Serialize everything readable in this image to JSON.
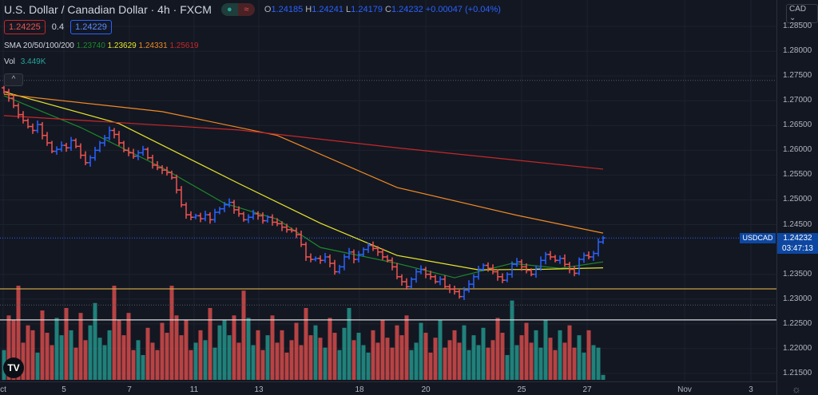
{
  "header": {
    "title": "U.S. Dollar / Canadian Dollar · 4h · FXCM",
    "ohlc": {
      "o_label": "O",
      "o": "1.24185",
      "h_label": "H",
      "h": "1.24241",
      "l_label": "L",
      "l": "1.24179",
      "c_label": "C",
      "c": "1.24232",
      "change": "+0.00047 (+0.04%)"
    },
    "bid": "1.24225",
    "spread": "0.4",
    "ask": "1.24229",
    "sma_label": "SMA 20/50/100/200",
    "sma20": "1.23740",
    "sma50": "1.23629",
    "sma100": "1.24331",
    "sma200": "1.25619",
    "vol_label": "Vol",
    "vol": "3.449K",
    "collapse": "^"
  },
  "price_axis": {
    "currency": "CAD ⌄",
    "labels": [
      "1.28500",
      "1.28000",
      "1.27500",
      "1.27000",
      "1.26500",
      "1.26000",
      "1.25500",
      "1.25000",
      "1.24500",
      "1.23500",
      "1.23000",
      "1.22500",
      "1.22000",
      "1.21500"
    ],
    "symbol": "USDCAD",
    "last_price": "1.24232",
    "countdown": "03:47:13"
  },
  "time_axis": {
    "labels": [
      "ct",
      "5",
      "7",
      "11",
      "13",
      "18",
      "20",
      "25",
      "27",
      "Nov",
      "3"
    ]
  },
  "logo": "TV",
  "colors": {
    "up": "#2962ff",
    "down": "#ef5350",
    "vol_up": "#26a69a",
    "vol_down": "#ef5350",
    "sma20": "#1b8a2a",
    "sma50": "#e6e62a",
    "sma100": "#f08a24",
    "sma200": "#c62828",
    "level": "#c9a044"
  },
  "chart_data": {
    "type": "ohlc-bar",
    "ylim": [
      1.213,
      1.2875
    ],
    "closes": [
      1.2718,
      1.2705,
      1.269,
      1.2672,
      1.266,
      1.2648,
      1.264,
      1.2652,
      1.263,
      1.2615,
      1.2598,
      1.2602,
      1.261,
      1.2605,
      1.262,
      1.2608,
      1.259,
      1.2575,
      1.2585,
      1.26,
      1.2615,
      1.2625,
      1.264,
      1.2632,
      1.2615,
      1.26,
      1.2595,
      1.2588,
      1.2595,
      1.2602,
      1.2585,
      1.257,
      1.2565,
      1.256,
      1.2555,
      1.2545,
      1.252,
      1.249,
      1.247,
      1.2465,
      1.2468,
      1.2462,
      1.247,
      1.246,
      1.2475,
      1.2482,
      1.249,
      1.2495,
      1.248,
      1.2472,
      1.246,
      1.2465,
      1.2472,
      1.2468,
      1.2458,
      1.2465,
      1.2455,
      1.2452,
      1.2445,
      1.244,
      1.2438,
      1.243,
      1.241,
      1.2385,
      1.238,
      1.2382,
      1.2378,
      1.2385,
      1.2372,
      1.2355,
      1.2365,
      1.2385,
      1.2395,
      1.238,
      1.239,
      1.24,
      1.2408,
      1.2402,
      1.2395,
      1.2385,
      1.2378,
      1.2365,
      1.2345,
      1.2335,
      1.2325,
      1.234,
      1.2355,
      1.236,
      1.235,
      1.2345,
      1.2335,
      1.234,
      1.2325,
      1.232,
      1.2315,
      1.2305,
      1.2318,
      1.233,
      1.2345,
      1.236,
      1.2368,
      1.2362,
      1.2355,
      1.2345,
      1.2338,
      1.235,
      1.237,
      1.2375,
      1.2365,
      1.2358,
      1.235,
      1.2362,
      1.2378,
      1.239,
      1.2385,
      1.2378,
      1.2382,
      1.237,
      1.236,
      1.2352,
      1.238,
      1.2388,
      1.2385,
      1.2392,
      1.2415,
      1.24232
    ],
    "volumes": [
      1.2,
      2.6,
      2.4,
      3.8,
      1.5,
      2.2,
      2.0,
      1.1,
      2.8,
      1.9,
      1.4,
      2.5,
      1.8,
      2.9,
      2.0,
      1.3,
      2.7,
      1.6,
      2.2,
      3.1,
      1.7,
      1.4,
      2.0,
      3.8,
      2.4,
      1.8,
      2.7,
      1.2,
      1.6,
      1.0,
      2.1,
      1.5,
      1.2,
      2.3,
      1.9,
      3.8,
      2.6,
      1.8,
      2.4,
      1.2,
      1.5,
      2.0,
      1.6,
      2.9,
      1.3,
      2.2,
      2.4,
      1.8,
      2.6,
      1.5,
      3.6,
      2.5,
      1.4,
      2.0,
      1.2,
      1.8,
      2.6,
      1.5,
      2.0,
      1.1,
      1.6,
      2.3,
      1.4,
      2.9,
      1.8,
      2.2,
      1.7,
      1.3,
      2.5,
      1.9,
      1.2,
      2.1,
      2.9,
      1.6,
      1.9,
      1.4,
      1.1,
      2.0,
      1.5,
      2.4,
      1.7,
      1.3,
      2.2,
      1.8,
      2.6,
      1.2,
      1.5,
      2.3,
      1.9,
      1.1,
      1.7,
      2.4,
      1.3,
      1.6,
      2.0,
      1.5,
      2.2,
      1.2,
      1.8,
      1.4,
      2.1,
      1.3,
      1.6,
      2.5,
      1.9,
      1.0,
      3.2,
      1.4,
      1.8,
      2.3,
      1.5,
      2.0,
      1.3,
      2.4,
      1.7,
      1.2,
      2.0,
      1.5,
      2.2,
      1.3,
      1.8,
      1.1,
      2.0,
      1.4,
      1.3,
      0.2
    ],
    "sma": [
      {
        "name": "SMA 20",
        "color": "#1b8a2a",
        "points": [
          [
            0,
            1.271
          ],
          [
            16,
            1.2646
          ],
          [
            33,
            1.2565
          ],
          [
            46,
            1.2493
          ],
          [
            57,
            1.2461
          ],
          [
            66,
            1.2404
          ],
          [
            82,
            1.2372
          ],
          [
            94,
            1.2343
          ],
          [
            106,
            1.2372
          ],
          [
            116,
            1.2362
          ],
          [
            125,
            1.2375
          ]
        ]
      },
      {
        "name": "SMA 50",
        "color": "#e6e62a",
        "points": [
          [
            0,
            1.2718
          ],
          [
            24,
            1.2654
          ],
          [
            49,
            1.2533
          ],
          [
            66,
            1.2453
          ],
          [
            82,
            1.2388
          ],
          [
            99,
            1.2359
          ],
          [
            112,
            1.236
          ],
          [
            125,
            1.2363
          ]
        ]
      },
      {
        "name": "SMA 100",
        "color": "#f08a24",
        "points": [
          [
            0,
            1.2713
          ],
          [
            33,
            1.2678
          ],
          [
            57,
            1.263
          ],
          [
            82,
            1.2525
          ],
          [
            107,
            1.2469
          ],
          [
            125,
            1.2433
          ]
        ]
      },
      {
        "name": "SMA 200",
        "color": "#c62828",
        "points": [
          [
            0,
            1.267
          ],
          [
            49,
            1.2641
          ],
          [
            82,
            1.2605
          ],
          [
            125,
            1.2562
          ]
        ]
      }
    ],
    "levels": [
      {
        "price": 1.23205,
        "color": "#c9a044",
        "style": "solid"
      },
      {
        "price": 1.2258,
        "color": "#d8d8d8",
        "style": "solid"
      },
      {
        "price": 1.2741,
        "color": "#555a66",
        "style": "dotted"
      },
      {
        "price": 1.2288,
        "color": "#555a66",
        "style": "dotted"
      },
      {
        "price": 1.24232,
        "color": "#2962ff",
        "style": "dotted"
      }
    ]
  }
}
